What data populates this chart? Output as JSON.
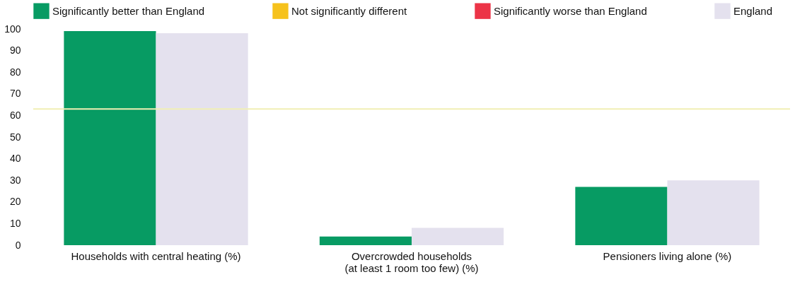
{
  "chart_data": {
    "type": "bar",
    "categories": [
      "Households with central heating (%)",
      "Overcrowded households (at least 1 room too few) (%)",
      "Pensioners living alone (%)"
    ],
    "series": [
      {
        "name": "Significantly better than England",
        "color": "#079b63",
        "values": [
          99,
          4,
          27
        ]
      },
      {
        "name": "Not significantly different",
        "color": "#f6c21c",
        "values": [
          null,
          null,
          null
        ]
      },
      {
        "name": "Significantly worse than England",
        "color": "#ec3447",
        "values": [
          null,
          null,
          null
        ]
      },
      {
        "name": "England",
        "color": "#e4e1ee",
        "values": [
          98,
          8,
          30
        ]
      }
    ],
    "ylim": [
      0,
      100
    ],
    "yticks": [
      0,
      10,
      20,
      30,
      40,
      50,
      60,
      70,
      80,
      90,
      100
    ],
    "legend": "top",
    "ref_lines": [
      {
        "axis": "y",
        "value": 63,
        "color": "#f1efb4"
      }
    ]
  }
}
